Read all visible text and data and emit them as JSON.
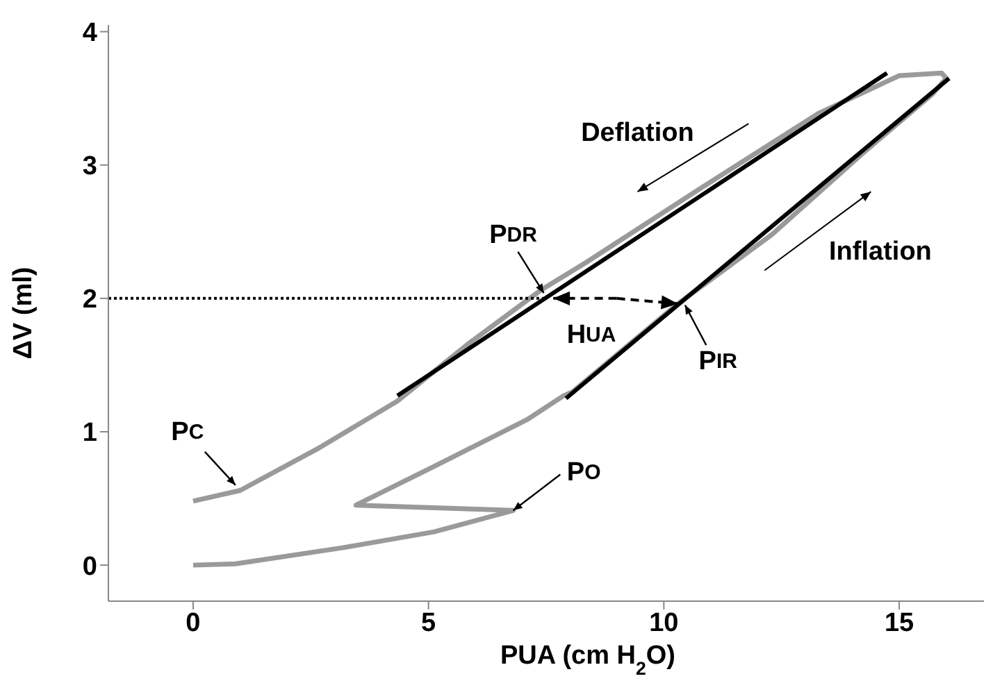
{
  "chart_data": {
    "type": "line",
    "xlabel": "PUA (cm H$_{2}$O)",
    "ylabel": "ΔV (ml)",
    "xlim": [
      -1.8,
      16.8
    ],
    "ylim": [
      -0.27,
      4.05
    ],
    "xticks": [
      0,
      5,
      10,
      15
    ],
    "yticks": [
      0,
      1,
      2,
      3,
      4
    ],
    "marker": "none",
    "series": [
      {
        "color": "#9a9a9a",
        "x": [
          0,
          0.9,
          3.17,
          5.12,
          6.8,
          3.46,
          5.12,
          7.09,
          7.87,
          8.06,
          10.3,
          12.3,
          14.2,
          15.7,
          16.0,
          15.9,
          15.0,
          13.3,
          10.8,
          8.35,
          7.38,
          5.81,
          4.34,
          2.68,
          1.0,
          0
        ],
        "values": [
          0,
          0.01,
          0.13,
          0.25,
          0.41,
          0.45,
          0.74,
          1.09,
          1.27,
          1.3,
          1.96,
          2.48,
          3.08,
          3.53,
          3.65,
          3.69,
          3.67,
          3.39,
          2.83,
          2.27,
          2.06,
          1.65,
          1.23,
          0.88,
          0.56,
          0.48
        ]
      },
      {
        "color": "#000000",
        "x": [
          4.34,
          14.74
        ],
        "values": [
          1.27,
          3.69
        ]
      },
      {
        "color": "#000000",
        "x": [
          7.92,
          16.06
        ],
        "values": [
          1.25,
          3.65
        ]
      },
      {
        "color": "#000000",
        "line_style": "dotted",
        "x": [
          -1.8,
          7.45
        ],
        "values": [
          2,
          2
        ]
      }
    ],
    "annotations": [
      "Deflation",
      "Inflation",
      {
        "text": "PDR",
        "x": 7.45,
        "y": 2.04
      },
      {
        "text": "PIR",
        "x": 10.45,
        "y": 1.95
      },
      {
        "text": "PC",
        "x": 0.9,
        "y": 0.6
      },
      {
        "text": "PO",
        "x": 6.8,
        "y": 0.41
      },
      {
        "text": "HUA",
        "x": 10.3,
        "y": 1.96
      }
    ]
  }
}
